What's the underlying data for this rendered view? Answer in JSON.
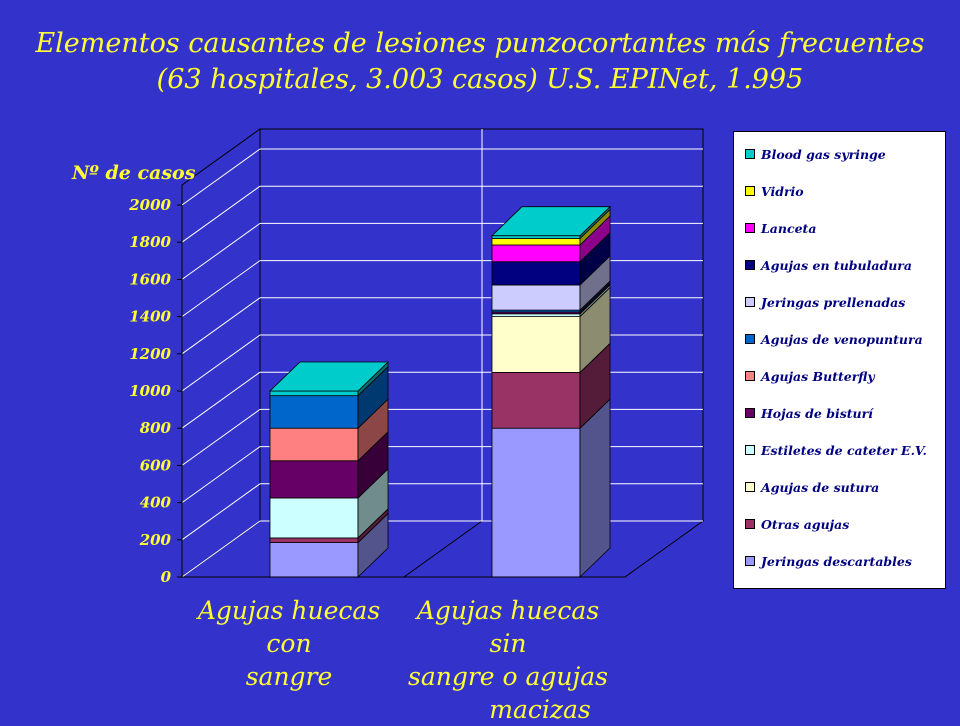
{
  "title": {
    "line1": "Elementos causantes de lesiones punzocortantes más frecuentes",
    "line2": "(63 hospitales, 3.003 casos) U.S. EPINet, 1.995"
  },
  "colors": {
    "background": "#3333CC",
    "title_text": "#FFFF33",
    "plot_background": "#3333CC",
    "gridlines": "#FFFFFF"
  },
  "chart_data": {
    "type": "bar",
    "stacked": true,
    "three_d": true,
    "ylabel": "Nº de casos",
    "ylim": [
      0,
      2000
    ],
    "yticks": [
      "0",
      "200",
      "400",
      "600",
      "800",
      "1000",
      "1200",
      "1400",
      "1600",
      "1800",
      "2000"
    ],
    "grid": true,
    "legend_position": "right",
    "categories": [
      "Agujas huecas con sangre",
      "Agujas huecas sin sangre o agujas macizas"
    ],
    "category_lines": [
      [
        "Agujas huecas con",
        "sangre"
      ],
      [
        "Agujas huecas sin",
        "sangre o agujas",
        "macizas"
      ]
    ],
    "series": [
      {
        "name": "Jeringas descartables",
        "color": "#9999FF",
        "values": [
          185,
          800
        ]
      },
      {
        "name": "Otras agujas",
        "color": "#993366",
        "values": [
          25,
          300
        ]
      },
      {
        "name": "Agujas de sutura",
        "color": "#FFFFCC",
        "values": [
          0,
          300
        ]
      },
      {
        "name": "Estiletes de cateter E.V.",
        "color": "#CCFFFF",
        "values": [
          215,
          15
        ]
      },
      {
        "name": "Hojas de bisturí",
        "color": "#660066",
        "values": [
          200,
          10
        ]
      },
      {
        "name": "Agujas Butterfly",
        "color": "#FF8080",
        "values": [
          175,
          0
        ]
      },
      {
        "name": "Agujas de venopuntura",
        "color": "#0066CC",
        "values": [
          175,
          10
        ]
      },
      {
        "name": "Jeringas prellenadas",
        "color": "#CCCCFF",
        "values": [
          0,
          135
        ]
      },
      {
        "name": "Agujas en tubuladura",
        "color": "#000080",
        "values": [
          0,
          125
        ]
      },
      {
        "name": "Lanceta",
        "color": "#FF00FF",
        "values": [
          0,
          90
        ]
      },
      {
        "name": "Vidrio",
        "color": "#FFFF00",
        "values": [
          0,
          35
        ]
      },
      {
        "name": "Blood gas syringe",
        "color": "#00CCCC",
        "values": [
          25,
          15
        ]
      }
    ]
  }
}
